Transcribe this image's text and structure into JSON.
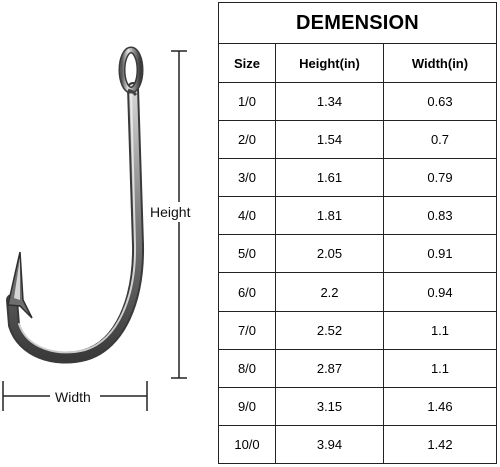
{
  "diagram": {
    "height_label": "Height",
    "width_label": "Width"
  },
  "table": {
    "title": "DEMENSION",
    "headers": [
      "Size",
      "Height(in)",
      "Width(in)"
    ],
    "rows": [
      [
        "1/0",
        "1.34",
        "0.63"
      ],
      [
        "2/0",
        "1.54",
        "0.7"
      ],
      [
        "3/0",
        "1.61",
        "0.79"
      ],
      [
        "4/0",
        "1.81",
        "0.83"
      ],
      [
        "5/0",
        "2.05",
        "0.91"
      ],
      [
        "6/0",
        "2.2",
        "0.94"
      ],
      [
        "7/0",
        "2.52",
        "1.1"
      ],
      [
        "8/0",
        "2.87",
        "1.1"
      ],
      [
        "9/0",
        "3.15",
        "1.46"
      ],
      [
        "10/0",
        "3.94",
        "1.42"
      ]
    ]
  }
}
